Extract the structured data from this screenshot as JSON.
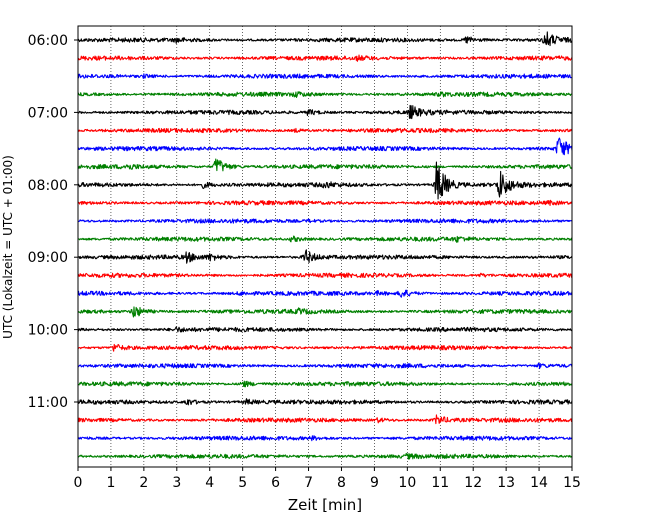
{
  "chart_data": {
    "type": "line",
    "title": "",
    "xlabel": "Zeit  [min]",
    "ylabel": "UTC (Lokalzeit = UTC + 01:00)",
    "xlim": [
      0,
      15
    ],
    "x_ticks": [
      0,
      1,
      2,
      3,
      4,
      5,
      6,
      7,
      8,
      9,
      10,
      11,
      12,
      13,
      14,
      15
    ],
    "x_tick_labels": [
      "0",
      "1",
      "2",
      "3",
      "4",
      "5",
      "6",
      "7",
      "8",
      "9",
      "10",
      "11",
      "12",
      "13",
      "14",
      "15"
    ],
    "y_tick_labels": [
      "06:00",
      "07:00",
      "08:00",
      "09:00",
      "10:00",
      "11:00"
    ],
    "trace_interval_min": 15,
    "grid": {
      "vertical": true,
      "style": "dotted"
    },
    "colors": [
      "#000000",
      "#ff0000",
      "#0000ff",
      "#008000"
    ],
    "traces": [
      {
        "start": "06:00",
        "color": "#000000",
        "events": [
          {
            "t": 11.8,
            "a": 0.4
          },
          {
            "t": 14.2,
            "a": 0.9
          },
          {
            "t": 3.0,
            "a": 0.2
          }
        ]
      },
      {
        "start": "06:15",
        "color": "#ff0000",
        "events": [
          {
            "t": 8.5,
            "a": 0.15
          }
        ]
      },
      {
        "start": "06:30",
        "color": "#0000ff",
        "events": [
          {
            "t": 2.0,
            "a": 0.15
          }
        ]
      },
      {
        "start": "06:45",
        "color": "#008000",
        "events": [
          {
            "t": 6.6,
            "a": 0.2
          },
          {
            "t": 11.0,
            "a": 0.15
          }
        ]
      },
      {
        "start": "07:00",
        "color": "#000000",
        "events": [
          {
            "t": 10.1,
            "a": 0.7
          },
          {
            "t": 7.0,
            "a": 0.3
          }
        ]
      },
      {
        "start": "07:15",
        "color": "#ff0000",
        "events": [
          {
            "t": 6.6,
            "a": 0.15
          }
        ]
      },
      {
        "start": "07:30",
        "color": "#0000ff",
        "events": [
          {
            "t": 14.6,
            "a": 1.3
          }
        ]
      },
      {
        "start": "07:45",
        "color": "#008000",
        "events": [
          {
            "t": 4.2,
            "a": 1.0
          },
          {
            "t": 1.5,
            "a": 0.2
          }
        ]
      },
      {
        "start": "08:00",
        "color": "#000000",
        "events": [
          {
            "t": 10.9,
            "a": 2.6
          },
          {
            "t": 12.8,
            "a": 1.6
          },
          {
            "t": 3.8,
            "a": 0.3
          },
          {
            "t": 7.5,
            "a": 0.25
          }
        ]
      },
      {
        "start": "08:15",
        "color": "#ff0000",
        "events": [
          {
            "t": 14.3,
            "a": 0.15
          }
        ]
      },
      {
        "start": "08:30",
        "color": "#0000ff",
        "events": [
          {
            "t": 7.0,
            "a": 0.1
          }
        ]
      },
      {
        "start": "08:45",
        "color": "#008000",
        "events": [
          {
            "t": 6.5,
            "a": 0.3
          },
          {
            "t": 11.5,
            "a": 0.2
          }
        ]
      },
      {
        "start": "09:00",
        "color": "#000000",
        "events": [
          {
            "t": 3.3,
            "a": 0.5
          },
          {
            "t": 6.9,
            "a": 0.8
          },
          {
            "t": 4.0,
            "a": 0.3
          }
        ]
      },
      {
        "start": "09:15",
        "color": "#ff0000",
        "events": [
          {
            "t": 12.2,
            "a": 0.15
          }
        ]
      },
      {
        "start": "09:30",
        "color": "#0000ff",
        "events": [
          {
            "t": 9.8,
            "a": 0.5
          },
          {
            "t": 4.9,
            "a": 0.15
          },
          {
            "t": 9.1,
            "a": 0.15
          }
        ]
      },
      {
        "start": "09:45",
        "color": "#008000",
        "events": [
          {
            "t": 1.7,
            "a": 0.7
          },
          {
            "t": 6.7,
            "a": 0.2
          }
        ]
      },
      {
        "start": "10:00",
        "color": "#000000",
        "events": [
          {
            "t": 3.0,
            "a": 0.2
          }
        ]
      },
      {
        "start": "10:15",
        "color": "#ff0000",
        "events": [
          {
            "t": 1.1,
            "a": 0.4
          }
        ]
      },
      {
        "start": "10:30",
        "color": "#0000ff",
        "events": [
          {
            "t": 14.0,
            "a": 0.2
          }
        ]
      },
      {
        "start": "10:45",
        "color": "#008000",
        "events": [
          {
            "t": 5.0,
            "a": 0.35
          }
        ]
      },
      {
        "start": "11:00",
        "color": "#000000",
        "events": [
          {
            "t": 3.3,
            "a": 0.35
          },
          {
            "t": 5.1,
            "a": 0.25
          }
        ]
      },
      {
        "start": "11:15",
        "color": "#ff0000",
        "events": [
          {
            "t": 10.9,
            "a": 0.5
          },
          {
            "t": 9.1,
            "a": 0.2
          }
        ]
      },
      {
        "start": "11:30",
        "color": "#0000ff",
        "events": [
          {
            "t": 7.1,
            "a": 0.15
          }
        ]
      },
      {
        "start": "11:45",
        "color": "#008000",
        "events": [
          {
            "t": 10.0,
            "a": 0.15
          }
        ]
      }
    ]
  }
}
